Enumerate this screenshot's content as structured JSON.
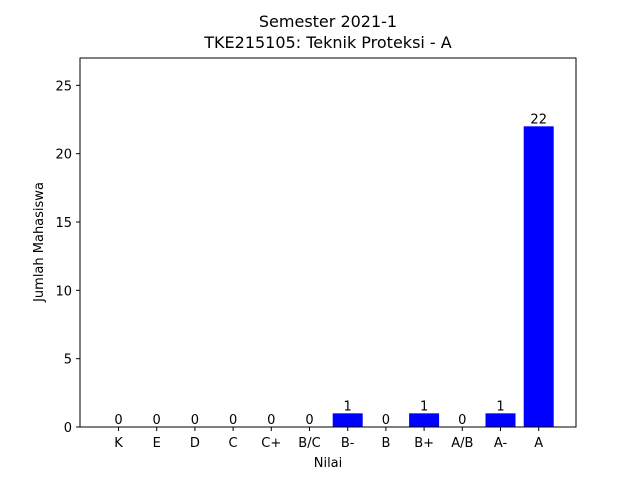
{
  "chart_data": {
    "type": "bar",
    "title": "Semester 2021-1",
    "subtitle": "TKE215105: Teknik Proteksi - A",
    "xlabel": "Nilai",
    "ylabel": "Jumlah Mahasiswa",
    "categories": [
      "K",
      "E",
      "D",
      "C",
      "C+",
      "B/C",
      "B-",
      "B",
      "B+",
      "A/B",
      "A-",
      "A"
    ],
    "values": [
      0,
      0,
      0,
      0,
      0,
      0,
      1,
      0,
      1,
      0,
      1,
      22
    ],
    "ylim": [
      0,
      27
    ],
    "yticks": [
      0,
      5,
      10,
      15,
      20,
      25
    ],
    "bar_color": "#0000ff",
    "grid": false,
    "legend": "none"
  }
}
